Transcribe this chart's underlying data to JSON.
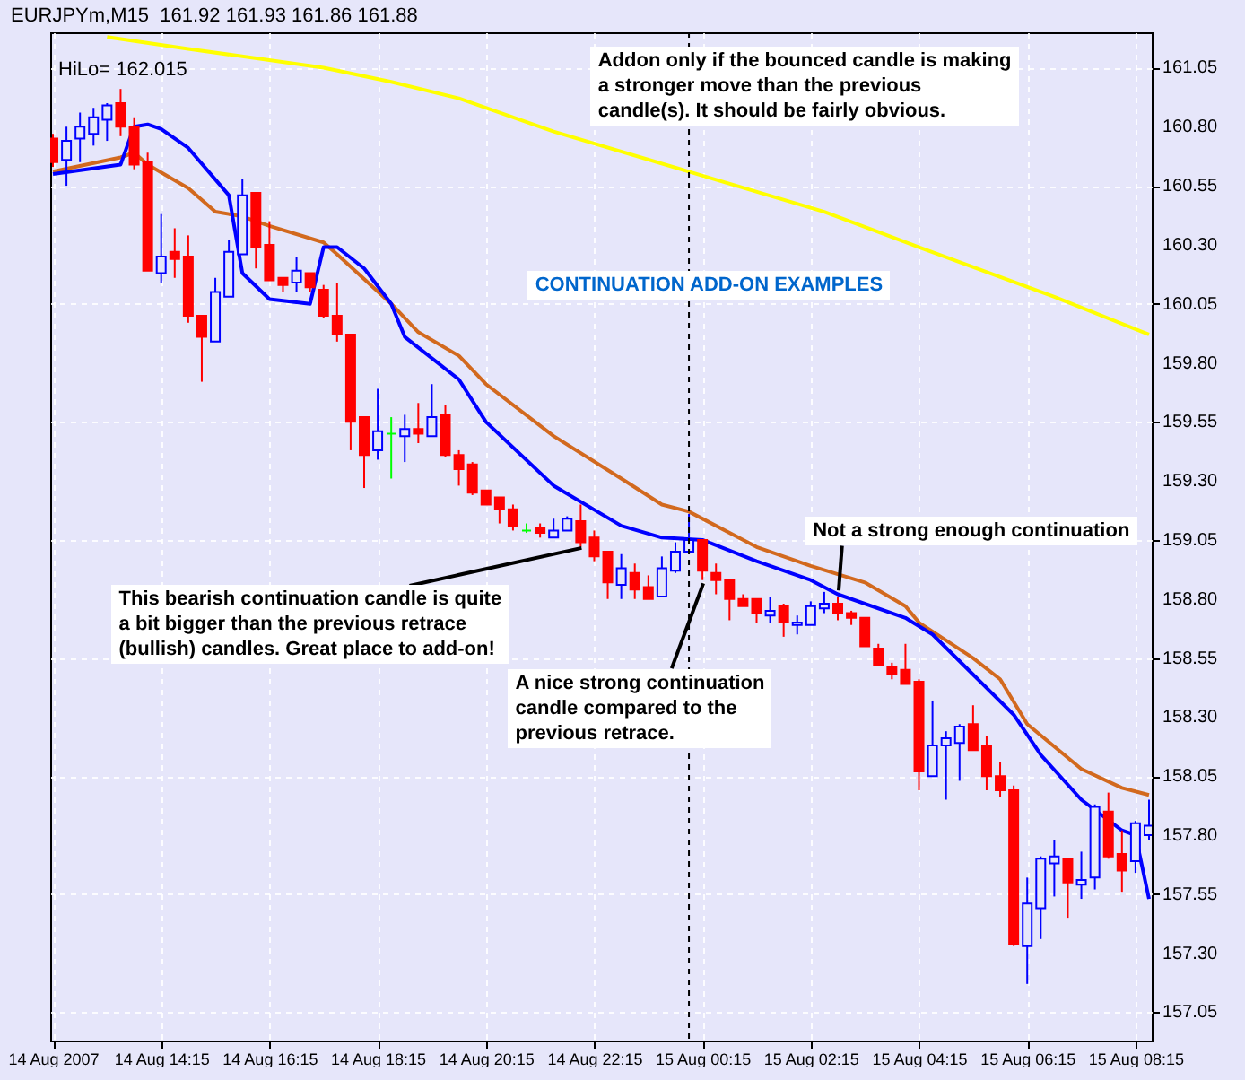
{
  "chart_data": {
    "type": "candlestick",
    "title": "CONTINUATION ADD-ON EXAMPLES",
    "subtitle": "EURJPYm,M15  161.92 161.93 161.86 161.88",
    "annotations": [
      "HiLo= 162.015",
      "Addon only if the bounced candle is making\na stronger move than the previous\ncandle(s). It should be fairly obvious.",
      {
        "text": "This bearish continuation candle is quite\na bit bigger than the previous retrace\n(bullish) candles. Great place to add-on!",
        "x": "2007-08-14T22:00",
        "y": 159.02
      },
      {
        "text": "A nice strong continuation\ncandle compared to the\nprevious retrace.",
        "x": "2007-08-15T00:15",
        "y": 158.87
      },
      {
        "text": "Not a strong enough continuation",
        "x": "2007-08-15T02:45",
        "y": 158.84
      }
    ],
    "x": [
      "2007-08-14T12:15",
      "2007-08-14T12:30",
      "2007-08-14T12:45",
      "2007-08-14T13:00",
      "2007-08-14T13:15",
      "2007-08-14T13:30",
      "2007-08-14T13:45",
      "2007-08-14T14:00",
      "2007-08-14T14:15",
      "2007-08-14T14:30",
      "2007-08-14T14:45",
      "2007-08-14T15:00",
      "2007-08-14T15:15",
      "2007-08-14T15:30",
      "2007-08-14T15:45",
      "2007-08-14T16:00",
      "2007-08-14T16:15",
      "2007-08-14T16:30",
      "2007-08-14T16:45",
      "2007-08-14T17:00",
      "2007-08-14T17:15",
      "2007-08-14T17:30",
      "2007-08-14T17:45",
      "2007-08-14T18:00",
      "2007-08-14T18:15",
      "2007-08-14T18:30",
      "2007-08-14T18:45",
      "2007-08-14T19:00",
      "2007-08-14T19:15",
      "2007-08-14T19:30",
      "2007-08-14T19:45",
      "2007-08-14T20:00",
      "2007-08-14T20:15",
      "2007-08-14T20:30",
      "2007-08-14T20:45",
      "2007-08-14T21:00",
      "2007-08-14T21:15",
      "2007-08-14T21:30",
      "2007-08-14T21:45",
      "2007-08-14T22:00",
      "2007-08-14T22:15",
      "2007-08-14T22:30",
      "2007-08-14T22:45",
      "2007-08-14T23:00",
      "2007-08-14T23:15",
      "2007-08-14T23:30",
      "2007-08-14T23:45",
      "2007-08-15T00:00",
      "2007-08-15T00:15",
      "2007-08-15T00:30",
      "2007-08-15T00:45",
      "2007-08-15T01:00",
      "2007-08-15T01:15",
      "2007-08-15T01:30",
      "2007-08-15T01:45",
      "2007-08-15T02:00",
      "2007-08-15T02:15",
      "2007-08-15T02:30",
      "2007-08-15T02:45",
      "2007-08-15T03:00",
      "2007-08-15T03:15",
      "2007-08-15T03:30",
      "2007-08-15T03:45",
      "2007-08-15T04:00",
      "2007-08-15T04:15",
      "2007-08-15T04:30",
      "2007-08-15T04:45",
      "2007-08-15T05:00",
      "2007-08-15T05:15",
      "2007-08-15T05:30",
      "2007-08-15T05:45",
      "2007-08-15T06:00",
      "2007-08-15T06:15",
      "2007-08-15T06:30",
      "2007-08-15T06:45",
      "2007-08-15T07:00",
      "2007-08-15T07:15",
      "2007-08-15T07:30",
      "2007-08-15T07:45",
      "2007-08-15T08:00",
      "2007-08-15T08:15",
      "2007-08-15T08:30"
    ],
    "ohlc": [
      [
        160.75,
        160.77,
        160.63,
        160.65
      ],
      [
        160.66,
        160.8,
        160.55,
        160.74
      ],
      [
        160.75,
        160.86,
        160.65,
        160.8
      ],
      [
        160.77,
        160.88,
        160.72,
        160.84
      ],
      [
        160.83,
        160.9,
        160.74,
        160.89
      ],
      [
        160.9,
        160.96,
        160.76,
        160.8
      ],
      [
        160.8,
        160.84,
        160.62,
        160.64
      ],
      [
        160.65,
        160.69,
        160.19,
        160.19
      ],
      [
        160.18,
        160.43,
        160.14,
        160.25
      ],
      [
        160.27,
        160.37,
        160.16,
        160.24
      ],
      [
        160.25,
        160.34,
        159.97,
        160.0
      ],
      [
        160.0,
        160.0,
        159.72,
        159.91
      ],
      [
        159.89,
        160.16,
        159.89,
        160.1
      ],
      [
        160.08,
        160.32,
        160.08,
        160.27
      ],
      [
        160.26,
        160.58,
        160.26,
        160.51
      ],
      [
        160.52,
        160.52,
        160.2,
        160.29
      ],
      [
        160.3,
        160.4,
        160.15,
        160.15
      ],
      [
        160.16,
        160.16,
        160.1,
        160.13
      ],
      [
        160.14,
        160.25,
        160.1,
        160.19
      ],
      [
        160.18,
        160.18,
        160.1,
        160.12
      ],
      [
        160.11,
        160.13,
        159.99,
        160.0
      ],
      [
        160.0,
        160.14,
        159.89,
        159.92
      ],
      [
        159.92,
        159.92,
        159.43,
        159.55
      ],
      [
        159.57,
        159.57,
        159.27,
        159.41
      ],
      [
        159.43,
        159.69,
        159.39,
        159.51
      ],
      [
        159.5,
        159.57,
        159.31,
        159.5
      ],
      [
        159.49,
        159.58,
        159.38,
        159.52
      ],
      [
        159.52,
        159.63,
        159.46,
        159.5
      ],
      [
        159.49,
        159.71,
        159.49,
        159.57
      ],
      [
        159.58,
        159.62,
        159.4,
        159.41
      ],
      [
        159.41,
        159.43,
        159.28,
        159.35
      ],
      [
        159.37,
        159.38,
        159.24,
        159.25
      ],
      [
        159.26,
        159.26,
        159.2,
        159.2
      ],
      [
        159.23,
        159.23,
        159.12,
        159.18
      ],
      [
        159.18,
        159.2,
        159.09,
        159.11
      ],
      [
        159.09,
        159.12,
        159.08,
        159.09
      ],
      [
        159.1,
        159.12,
        159.06,
        159.08
      ],
      [
        159.06,
        159.14,
        159.06,
        159.09
      ],
      [
        159.09,
        159.15,
        159.09,
        159.14
      ],
      [
        159.13,
        159.2,
        159.02,
        159.04
      ],
      [
        159.06,
        159.09,
        158.96,
        158.98
      ],
      [
        159.0,
        159.0,
        158.8,
        158.87
      ],
      [
        158.86,
        158.99,
        158.8,
        158.93
      ],
      [
        158.91,
        158.95,
        158.8,
        158.84
      ],
      [
        158.85,
        158.9,
        158.8,
        158.8
      ],
      [
        158.81,
        158.98,
        158.81,
        158.93
      ],
      [
        158.92,
        159.04,
        158.91,
        159.0
      ],
      [
        159.0,
        159.16,
        159.0,
        159.05
      ],
      [
        159.05,
        159.05,
        158.88,
        158.92
      ],
      [
        158.91,
        158.95,
        158.82,
        158.88
      ],
      [
        158.88,
        158.88,
        158.71,
        158.8
      ],
      [
        158.8,
        158.82,
        158.77,
        158.77
      ],
      [
        158.8,
        158.8,
        158.7,
        158.74
      ],
      [
        158.73,
        158.81,
        158.7,
        158.75
      ],
      [
        158.77,
        158.78,
        158.64,
        158.7
      ],
      [
        158.69,
        158.73,
        158.65,
        158.7
      ],
      [
        158.69,
        158.79,
        158.69,
        158.77
      ],
      [
        158.76,
        158.83,
        158.74,
        158.78
      ],
      [
        158.78,
        158.81,
        158.71,
        158.74
      ],
      [
        158.74,
        158.75,
        158.69,
        158.72
      ],
      [
        158.72,
        158.72,
        158.6,
        158.6
      ],
      [
        158.59,
        158.61,
        158.52,
        158.52
      ],
      [
        158.51,
        158.53,
        158.46,
        158.48
      ],
      [
        158.5,
        158.61,
        158.44,
        158.44
      ],
      [
        158.45,
        158.46,
        157.99,
        158.07
      ],
      [
        158.05,
        158.37,
        158.05,
        158.18
      ],
      [
        158.18,
        158.24,
        157.95,
        158.21
      ],
      [
        158.19,
        158.27,
        158.03,
        158.26
      ],
      [
        158.27,
        158.35,
        158.16,
        158.16
      ],
      [
        158.18,
        158.22,
        157.99,
        158.05
      ],
      [
        158.05,
        158.11,
        157.96,
        157.99
      ],
      [
        157.99,
        158.01,
        157.33,
        157.34
      ],
      [
        157.33,
        157.62,
        157.17,
        157.51
      ],
      [
        157.49,
        157.71,
        157.36,
        157.7
      ],
      [
        157.68,
        157.78,
        157.54,
        157.71
      ],
      [
        157.7,
        157.7,
        157.45,
        157.6
      ],
      [
        157.59,
        157.73,
        157.53,
        157.61
      ],
      [
        157.62,
        157.93,
        157.57,
        157.92
      ],
      [
        157.9,
        157.98,
        157.7,
        157.71
      ],
      [
        157.72,
        157.82,
        157.56,
        157.65
      ],
      [
        157.69,
        157.86,
        157.64,
        157.85
      ],
      [
        157.8,
        157.95,
        157.78,
        157.84
      ]
    ],
    "colors": [
      "#ff0000",
      "#0000ff",
      "#0000ff",
      "#0000ff",
      "#0000ff",
      "#ff0000",
      "#ff0000",
      "#ff0000",
      "#0000ff",
      "#ff0000",
      "#ff0000",
      "#ff0000",
      "#0000ff",
      "#0000ff",
      "#0000ff",
      "#ff0000",
      "#ff0000",
      "#ff0000",
      "#0000ff",
      "#ff0000",
      "#ff0000",
      "#ff0000",
      "#ff0000",
      "#ff0000",
      "#0000ff",
      "#00ff00",
      "#0000ff",
      "#ff0000",
      "#0000ff",
      "#ff0000",
      "#ff0000",
      "#ff0000",
      "#ff0000",
      "#ff0000",
      "#ff0000",
      "#00ff00",
      "#ff0000",
      "#0000ff",
      "#0000ff",
      "#ff0000",
      "#ff0000",
      "#ff0000",
      "#0000ff",
      "#ff0000",
      "#ff0000",
      "#0000ff",
      "#0000ff",
      "#0000ff",
      "#ff0000",
      "#ff0000",
      "#ff0000",
      "#ff0000",
      "#ff0000",
      "#0000ff",
      "#ff0000",
      "#0000ff",
      "#0000ff",
      "#0000ff",
      "#ff0000",
      "#ff0000",
      "#ff0000",
      "#ff0000",
      "#ff0000",
      "#ff0000",
      "#ff0000",
      "#0000ff",
      "#0000ff",
      "#0000ff",
      "#ff0000",
      "#ff0000",
      "#ff0000",
      "#ff0000",
      "#0000ff",
      "#0000ff",
      "#0000ff",
      "#ff0000",
      "#0000ff",
      "#0000ff",
      "#ff0000",
      "#ff0000",
      "#0000ff",
      "#0000ff"
    ],
    "series": [
      {
        "type": "line",
        "color": "#ffff00",
        "x": [
          "2007-08-14T13:15",
          "2007-08-14T14:45",
          "2007-08-14T17:15",
          "2007-08-14T18:30",
          "2007-08-14T19:45",
          "2007-08-14T21:30",
          "2007-08-15T00:00",
          "2007-08-15T02:30",
          "2007-08-15T04:15",
          "2007-08-15T06:45",
          "2007-08-15T08:30"
        ],
        "values": [
          161.18,
          161.13,
          161.05,
          160.99,
          160.92,
          160.78,
          160.61,
          160.44,
          160.29,
          160.08,
          159.92
        ]
      },
      {
        "type": "line",
        "color": "#d2691e",
        "x": [
          "2007-08-14T12:15",
          "2007-08-14T13:30",
          "2007-08-14T13:45",
          "2007-08-14T14:00",
          "2007-08-14T14:45",
          "2007-08-14T15:15",
          "2007-08-14T15:45",
          "2007-08-14T16:15",
          "2007-08-14T17:15",
          "2007-08-14T17:30",
          "2007-08-14T18:30",
          "2007-08-14T19:00",
          "2007-08-14T19:45",
          "2007-08-14T20:15",
          "2007-08-14T21:30",
          "2007-08-14T22:45",
          "2007-08-14T23:30",
          "2007-08-15T00:00",
          "2007-08-15T01:15",
          "2007-08-15T02:15",
          "2007-08-15T03:15",
          "2007-08-15T04:00",
          "2007-08-15T04:15",
          "2007-08-15T05:15",
          "2007-08-15T05:45",
          "2007-08-15T06:15",
          "2007-08-15T07:15",
          "2007-08-15T08:00",
          "2007-08-15T08:30"
        ],
        "values": [
          160.61,
          160.67,
          160.69,
          160.64,
          160.54,
          160.44,
          160.42,
          160.38,
          160.31,
          160.26,
          160.05,
          159.93,
          159.83,
          159.71,
          159.49,
          159.31,
          159.2,
          159.17,
          159.02,
          158.94,
          158.87,
          158.77,
          158.7,
          158.55,
          158.46,
          158.27,
          158.08,
          158.0,
          157.97
        ]
      },
      {
        "type": "line",
        "color": "#0000ff",
        "x": [
          "2007-08-14T12:15",
          "2007-08-14T13:30",
          "2007-08-14T13:45",
          "2007-08-14T14:00",
          "2007-08-14T14:15",
          "2007-08-14T14:45",
          "2007-08-14T15:30",
          "2007-08-14T15:45",
          "2007-08-14T16:15",
          "2007-08-14T17:00",
          "2007-08-14T17:15",
          "2007-08-14T17:30",
          "2007-08-14T18:00",
          "2007-08-14T18:30",
          "2007-08-14T18:45",
          "2007-08-14T19:45",
          "2007-08-14T20:15",
          "2007-08-14T21:30",
          "2007-08-14T22:45",
          "2007-08-14T23:30",
          "2007-08-15T00:15",
          "2007-08-15T01:15",
          "2007-08-15T02:15",
          "2007-08-15T02:45",
          "2007-08-15T04:00",
          "2007-08-15T04:30",
          "2007-08-15T05:15",
          "2007-08-15T06:00",
          "2007-08-15T06:30",
          "2007-08-15T07:15",
          "2007-08-15T08:00",
          "2007-08-15T08:15",
          "2007-08-15T08:30"
        ],
        "values": [
          160.6,
          160.64,
          160.8,
          160.81,
          160.79,
          160.71,
          160.51,
          160.18,
          160.07,
          160.05,
          160.29,
          160.29,
          160.2,
          160.05,
          159.91,
          159.73,
          159.55,
          159.28,
          159.11,
          159.06,
          159.05,
          158.96,
          158.88,
          158.82,
          158.72,
          158.65,
          158.48,
          158.31,
          158.14,
          157.95,
          157.82,
          157.8,
          157.53
        ]
      }
    ],
    "ref_lines": [
      {
        "axis": "x",
        "value": "2007-08-15T00:00",
        "color": "#000000",
        "line_style": "dashed"
      }
    ],
    "xlim": [
      "2007-08-14T12:12",
      "2007-08-15T08:33"
    ],
    "xticks": [
      {
        "value": "2007-08-14T12:15",
        "label": "14 Aug 2007"
      },
      {
        "value": "2007-08-14T14:15",
        "label": "14 Aug 14:15"
      },
      {
        "value": "2007-08-14T16:15",
        "label": "14 Aug 16:15"
      },
      {
        "value": "2007-08-14T18:15",
        "label": "14 Aug 18:15"
      },
      {
        "value": "2007-08-14T20:15",
        "label": "14 Aug 20:15"
      },
      {
        "value": "2007-08-14T22:15",
        "label": "14 Aug 22:15"
      },
      {
        "value": "2007-08-15T00:15",
        "label": "15 Aug 00:15"
      },
      {
        "value": "2007-08-15T02:15",
        "label": "15 Aug 02:15"
      },
      {
        "value": "2007-08-15T04:15",
        "label": "15 Aug 04:15"
      },
      {
        "value": "2007-08-15T06:15",
        "label": "15 Aug 06:15"
      },
      {
        "value": "2007-08-15T08:15",
        "label": "15 Aug 08:15"
      }
    ],
    "ylim": [
      156.93,
      161.2
    ],
    "yticks": [
      {
        "value": 157.05,
        "label": "157.05"
      },
      {
        "value": 157.3,
        "label": "157.30"
      },
      {
        "value": 157.55,
        "label": "157.55"
      },
      {
        "value": 157.8,
        "label": "157.80"
      },
      {
        "value": 158.05,
        "label": "158.05"
      },
      {
        "value": 158.3,
        "label": "158.30"
      },
      {
        "value": 158.55,
        "label": "158.55"
      },
      {
        "value": 158.8,
        "label": "158.80"
      },
      {
        "value": 159.05,
        "label": "159.05"
      },
      {
        "value": 159.3,
        "label": "159.30"
      },
      {
        "value": 159.55,
        "label": "159.55"
      },
      {
        "value": 159.8,
        "label": "159.80"
      },
      {
        "value": 160.05,
        "label": "160.05"
      },
      {
        "value": 160.3,
        "label": "160.30"
      },
      {
        "value": 160.55,
        "label": "160.55"
      },
      {
        "value": 160.8,
        "label": "160.80"
      },
      {
        "value": 161.05,
        "label": "161.05"
      }
    ],
    "grid": true
  }
}
